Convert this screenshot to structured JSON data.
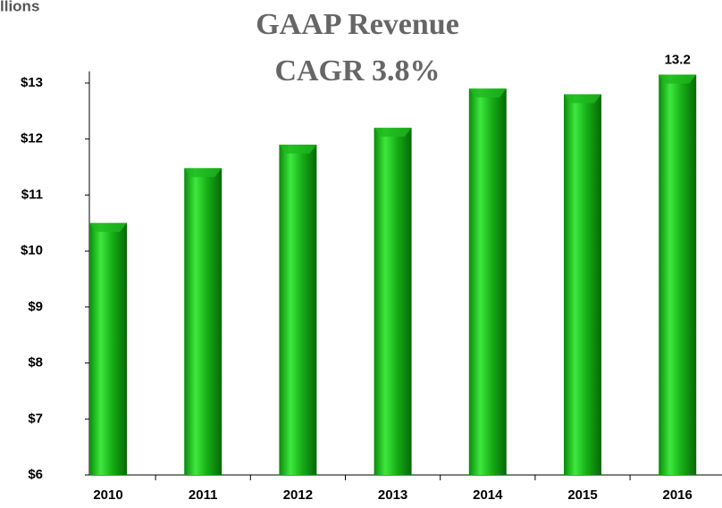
{
  "chart_data": {
    "type": "bar",
    "corner_text": "llions",
    "title": "GAAP Revenue",
    "subtitle": "CAGR 3.8%",
    "categories": [
      "2010",
      "2011",
      "2012",
      "2013",
      "2014",
      "2015",
      "2016"
    ],
    "values": [
      10.5,
      11.48,
      11.9,
      12.2,
      12.9,
      12.8,
      13.15
    ],
    "value_labels": [
      null,
      null,
      null,
      null,
      null,
      null,
      "13.2"
    ],
    "color": "#1fb81f",
    "ylim": [
      6,
      13
    ],
    "yticks": [
      {
        "value": 6,
        "label": "$6"
      },
      {
        "value": 7,
        "label": "$7"
      },
      {
        "value": 8,
        "label": "$8"
      },
      {
        "value": 9,
        "label": "$9"
      },
      {
        "value": 10,
        "label": "$10"
      },
      {
        "value": 11,
        "label": "$11"
      },
      {
        "value": 12,
        "label": "$12"
      },
      {
        "value": 13,
        "label": "$13"
      }
    ],
    "grid": false
  }
}
